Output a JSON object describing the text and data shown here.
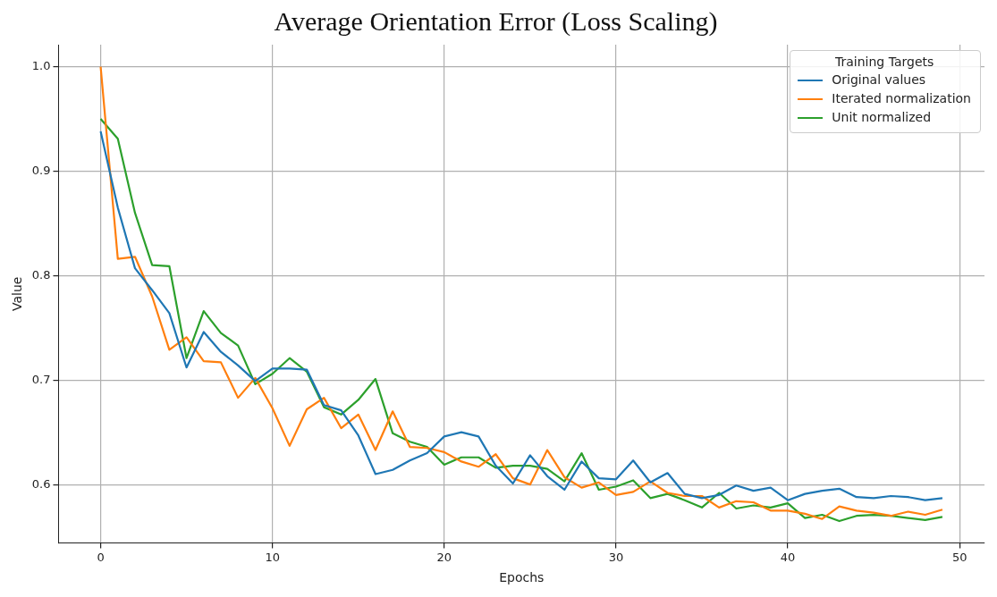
{
  "chart_data": {
    "type": "line",
    "title": "Average Orientation Error (Loss Scaling)",
    "xlabel": "Epochs",
    "ylabel": "Value",
    "legend_title": "Training Targets",
    "legend": "top right",
    "grid": true,
    "marker": "none",
    "line_style": "solid",
    "x": [
      0,
      1,
      2,
      3,
      4,
      5,
      6,
      7,
      8,
      9,
      10,
      11,
      12,
      13,
      14,
      15,
      16,
      17,
      18,
      19,
      20,
      21,
      22,
      23,
      24,
      25,
      26,
      27,
      28,
      29,
      30,
      31,
      32,
      33,
      34,
      35,
      36,
      37,
      38,
      39,
      40,
      41,
      42,
      43,
      44,
      45,
      46,
      47,
      48,
      49
    ],
    "xlim": [
      -2.45,
      51.45
    ],
    "xticks": [
      0,
      10,
      20,
      30,
      40,
      50
    ],
    "ylim": [
      0.544,
      1.021
    ],
    "yticks": [
      0.6,
      0.7,
      0.8,
      0.9,
      {
        "value": 1,
        "label": "1.0"
      }
    ],
    "series": [
      {
        "name": "Original values",
        "color": "#1f77b4",
        "values": [
          0.938,
          0.865,
          0.807,
          0.786,
          0.764,
          0.712,
          0.746,
          0.727,
          0.714,
          0.699,
          0.711,
          0.711,
          0.71,
          0.676,
          0.671,
          0.647,
          0.61,
          0.614,
          0.623,
          0.63,
          0.646,
          0.65,
          0.646,
          0.618,
          0.601,
          0.628,
          0.608,
          0.595,
          0.622,
          0.606,
          0.605,
          0.623,
          0.602,
          0.611,
          0.591,
          0.587,
          0.59,
          0.599,
          0.594,
          0.597,
          0.585,
          0.591,
          0.594,
          0.596,
          0.588,
          0.587,
          0.589,
          0.588,
          0.585,
          0.587
        ]
      },
      {
        "name": "Iterated normalization",
        "color": "#ff7f0e",
        "values": [
          1.0,
          0.816,
          0.818,
          0.78,
          0.729,
          0.741,
          0.718,
          0.717,
          0.683,
          0.702,
          0.673,
          0.637,
          0.672,
          0.683,
          0.654,
          0.667,
          0.633,
          0.67,
          0.636,
          0.635,
          0.631,
          0.622,
          0.617,
          0.629,
          0.606,
          0.6,
          0.633,
          0.607,
          0.597,
          0.602,
          0.59,
          0.593,
          0.603,
          0.592,
          0.589,
          0.589,
          0.578,
          0.584,
          0.583,
          0.575,
          0.575,
          0.572,
          0.567,
          0.579,
          0.575,
          0.573,
          0.57,
          0.574,
          0.571,
          0.576
        ]
      },
      {
        "name": "Unit normalized",
        "color": "#2ca02c",
        "values": [
          0.95,
          0.931,
          0.86,
          0.81,
          0.809,
          0.721,
          0.766,
          0.745,
          0.733,
          0.696,
          0.706,
          0.721,
          0.708,
          0.674,
          0.667,
          0.681,
          0.701,
          0.649,
          0.641,
          0.636,
          0.619,
          0.626,
          0.626,
          0.616,
          0.618,
          0.618,
          0.615,
          0.603,
          0.63,
          0.595,
          0.598,
          0.604,
          0.587,
          0.591,
          0.585,
          0.578,
          0.592,
          0.577,
          0.58,
          0.578,
          0.582,
          0.568,
          0.571,
          0.565,
          0.57,
          0.571,
          0.57,
          0.568,
          0.566,
          0.569
        ]
      }
    ]
  }
}
